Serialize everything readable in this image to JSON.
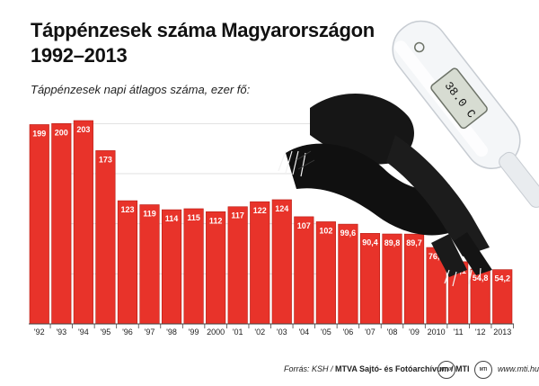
{
  "title_line1": "Táppénzesek száma Magyarországon",
  "title_line2": "1992–2013",
  "subtitle": "Táppénzesek napi átlagos száma, ezer fő:",
  "thermometer_display": "38.0 C",
  "footer": {
    "source": "Forrás: KSH /",
    "agency": "MTVA Sajtó- és Fotóarchívum / MTI",
    "logo1": "MTVA",
    "logo2": "MTI",
    "url": "www.mti.hu"
  },
  "chart_data": {
    "type": "bar",
    "title": "Táppénzesek száma Magyarországon 1992–2013",
    "ylabel": "Táppénzesek napi átlagos száma, ezer fő:",
    "categories": [
      "'92",
      "'93",
      "'94",
      "'95",
      "'96",
      "'97",
      "'98",
      "'99",
      "2000",
      "'01",
      "'02",
      "'03",
      "'04",
      "'05",
      "'06",
      "'07",
      "'08",
      "'09",
      "2010",
      "'11",
      "'12",
      "2013"
    ],
    "value_labels": [
      "199",
      "200",
      "203",
      "173",
      "123",
      "119",
      "114",
      "115",
      "112",
      "117",
      "122",
      "124",
      "107",
      "102",
      "99,6",
      "90,4",
      "89,8",
      "89,7",
      "76,3",
      "62,1",
      "54,8",
      "54,2"
    ],
    "values": [
      199,
      200,
      203,
      173,
      123,
      119,
      114,
      115,
      112,
      117,
      122,
      124,
      107,
      102,
      99.6,
      90.4,
      89.8,
      89.7,
      76.3,
      62.1,
      54.8,
      54.2
    ],
    "ylim": [
      0,
      220
    ],
    "grid": true,
    "colors": {
      "bar": "#e8332a",
      "bar_edge": "#b71c14",
      "grid": "#d9d9d9"
    }
  }
}
